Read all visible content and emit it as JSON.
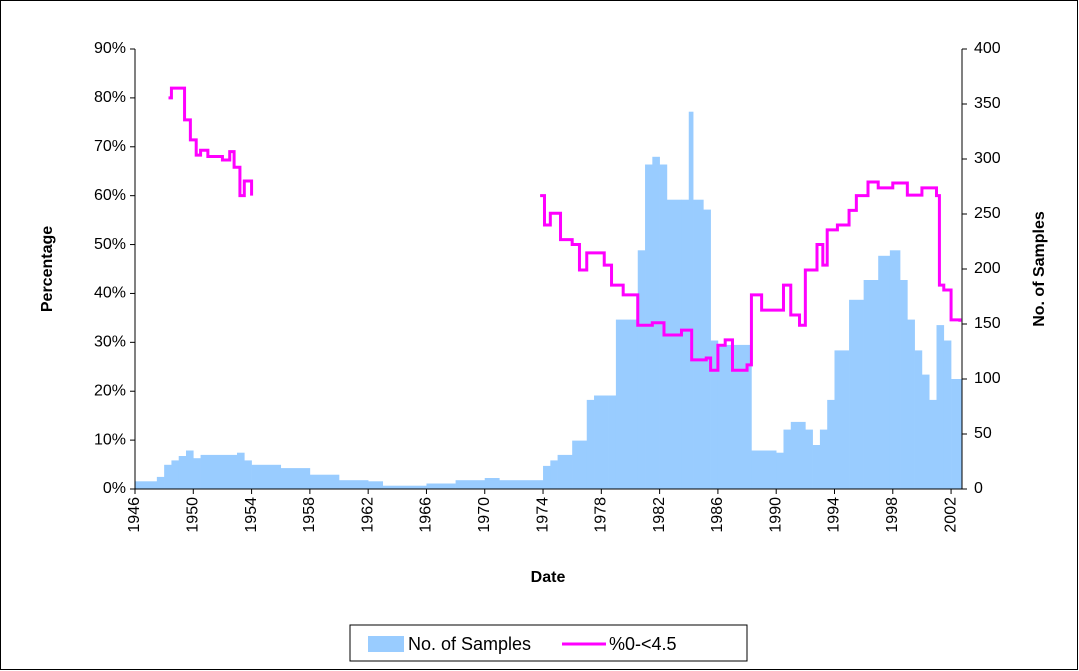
{
  "chart_data": {
    "type": "combo",
    "x_label": "Date",
    "y_label": "Percentage",
    "y2_label": "No. of Samples",
    "xlim": [
      1946,
      2002.75
    ],
    "xticks": [
      1946,
      1950,
      1954,
      1958,
      1962,
      1966,
      1970,
      1974,
      1978,
      1982,
      1986,
      1990,
      1994,
      1998,
      2002
    ],
    "ylim": [
      0,
      90
    ],
    "yticks": [
      {
        "value": 0,
        "label": "0%"
      },
      {
        "value": 10,
        "label": "10%"
      },
      {
        "value": 20,
        "label": "20%"
      },
      {
        "value": 30,
        "label": "30%"
      },
      {
        "value": 40,
        "label": "40%"
      },
      {
        "value": 50,
        "label": "50%"
      },
      {
        "value": 60,
        "label": "60%"
      },
      {
        "value": 70,
        "label": "70%"
      },
      {
        "value": 80,
        "label": "80%"
      },
      {
        "value": 90,
        "label": "90%"
      }
    ],
    "y2lim": [
      0,
      400
    ],
    "y2ticks": [
      0,
      50,
      100,
      150,
      200,
      250,
      300,
      350,
      400
    ],
    "legend": "bottom",
    "series": [
      {
        "name": "No. of Samples",
        "type": "bar",
        "axis": "y2",
        "color": "#99ccff",
        "x": [
          1946,
          1947.5,
          1948,
          1948.5,
          1949,
          1949.5,
          1950,
          1950.5,
          1953,
          1953.5,
          1954,
          1956,
          1958,
          1960,
          1962,
          1963,
          1966,
          1968,
          1970,
          1971,
          1974,
          1974.5,
          1975,
          1976,
          1977,
          1977.5,
          1978.5,
          1979,
          1980,
          1980.5,
          1981,
          1981.5,
          1982,
          1982.5,
          1983.5,
          1984,
          1984.3,
          1985,
          1985.5,
          1986,
          1988.3,
          1990,
          1990.5,
          1991,
          1992,
          1992.5,
          1993,
          1993.5,
          1994,
          1995,
          1996,
          1997,
          1997.8,
          1998.5,
          1999,
          1999.5,
          2000,
          2000.5,
          2001,
          2001.5,
          2002
        ],
        "values": [
          7,
          11,
          22,
          26,
          30,
          35,
          28,
          31,
          33,
          26,
          22,
          19,
          13,
          8,
          7,
          3,
          5,
          8,
          10,
          8,
          21,
          26,
          31,
          44,
          81,
          85,
          85,
          154,
          154,
          217,
          295,
          302,
          295,
          263,
          263,
          343,
          263,
          254,
          135,
          131,
          35,
          33,
          54,
          61,
          54,
          40,
          54,
          81,
          126,
          172,
          190,
          212,
          217,
          190,
          154,
          126,
          104,
          81,
          149,
          135,
          100
        ]
      },
      {
        "name": "%0-<4.5",
        "type": "line",
        "axis": "y",
        "color": "#ff00ff",
        "x": [
          1948.3,
          1948.5,
          1949.2,
          1949.4,
          1949.8,
          1950.2,
          1950.5,
          1951,
          1952,
          1952.5,
          1952.8,
          1953.2,
          1953.5,
          1954,
          1964,
          1973.8,
          1974.1,
          1974.5,
          1975.2,
          1976,
          1976.5,
          1977,
          1978.2,
          1978.7,
          1979.5,
          1980.5,
          1981.5,
          1982.3,
          1983.5,
          1984.2,
          1985.2,
          1985.5,
          1986,
          1986.5,
          1987,
          1988,
          1988.3,
          1989,
          1990,
          1990.5,
          1991,
          1991.6,
          1992,
          1992.8,
          1993.2,
          1993.5,
          1994.2,
          1995,
          1995.5,
          1996.3,
          1997,
          1998,
          1999,
          2000,
          2001,
          2001.2,
          2001.5,
          2002,
          2002.6
        ],
        "values": [
          80,
          82,
          82,
          75.5,
          71.4,
          68.3,
          69.3,
          68,
          67.3,
          69,
          65.8,
          60,
          63,
          60,
          null,
          60,
          54,
          56.4,
          51,
          50,
          44.8,
          48.3,
          45.8,
          41.7,
          39.7,
          33.5,
          34,
          31.5,
          32.5,
          26.4,
          26.8,
          24.3,
          29.4,
          30.5,
          24.3,
          25.4,
          39.7,
          36.6,
          36.6,
          41.7,
          35.6,
          33.5,
          44.8,
          50,
          45.8,
          53,
          54,
          57,
          60,
          62.8,
          61.6,
          62.6,
          60.1,
          61.6,
          60,
          41.7,
          40.7,
          34.6,
          34.2
        ]
      }
    ]
  }
}
